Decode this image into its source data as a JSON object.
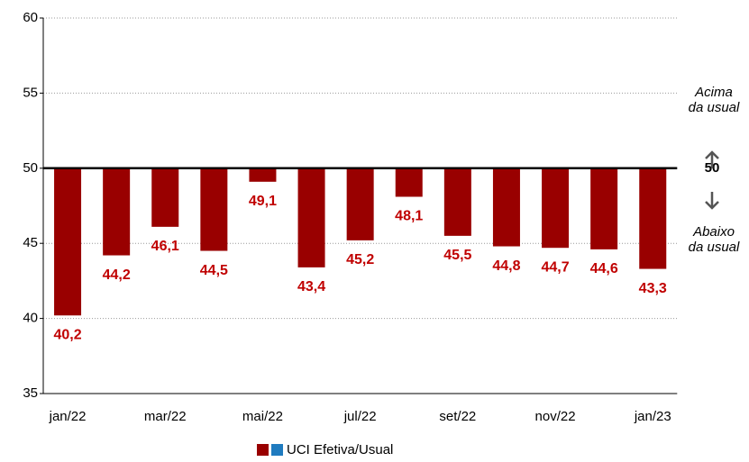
{
  "chart_data": {
    "type": "bar",
    "categories": [
      "jan/22",
      null,
      "mar/22",
      null,
      "mai/22",
      null,
      "jul/22",
      null,
      "set/22",
      null,
      "nov/22",
      null,
      "jan/23"
    ],
    "series": [
      {
        "name": "UCI Efetiva/Usual",
        "color": "#990000",
        "values": [
          40.2,
          44.2,
          46.1,
          44.5,
          49.1,
          43.4,
          45.2,
          48.1,
          45.5,
          44.8,
          44.7,
          44.6,
          43.3
        ],
        "value_labels": [
          "40,2",
          "44,2",
          "46,1",
          "44,5",
          "49,1",
          "43,4",
          "45,2",
          "48,1",
          "45,5",
          "44,8",
          "44,7",
          "44,6",
          "43,3"
        ]
      }
    ],
    "legend_swatches": [
      "#990000",
      "#1f7bbf"
    ],
    "baseline": 50,
    "annotations": {
      "above": [
        "Acima",
        "da usual"
      ],
      "below": [
        "Abaixo",
        "da usual"
      ]
    },
    "ylim": [
      35,
      60
    ],
    "yticks": [
      35,
      40,
      45,
      50,
      55,
      60
    ],
    "grid": true
  }
}
